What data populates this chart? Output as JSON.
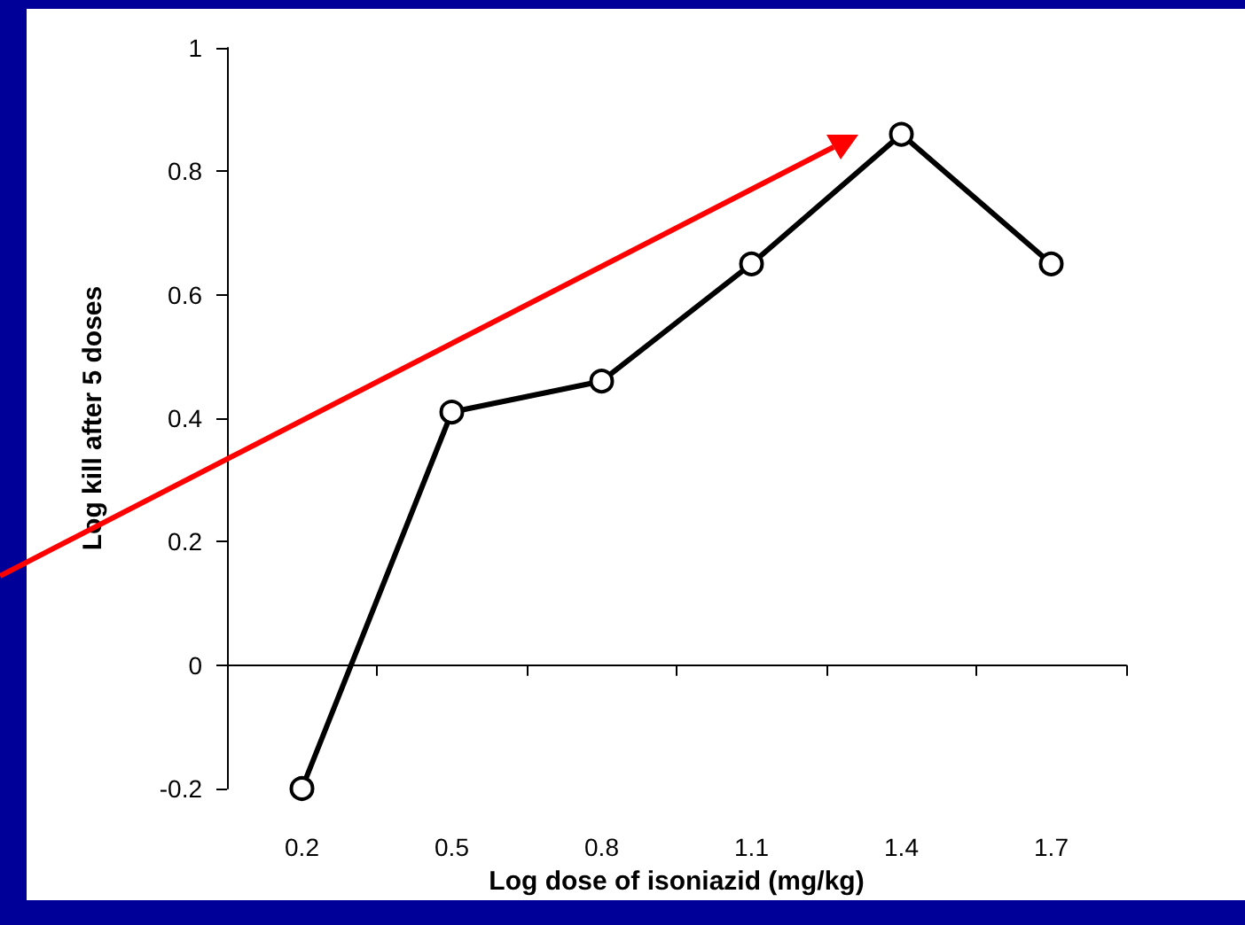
{
  "chart_data": {
    "type": "line",
    "xlabel": "Log dose of isoniazid (mg/kg)",
    "ylabel": "Log kill after 5 doses",
    "categories": [
      "0.2",
      "0.5",
      "0.8",
      "1.1",
      "1.4",
      "1.7"
    ],
    "series": [
      {
        "color": "#000000",
        "values": [
          -0.2,
          0.41,
          0.46,
          0.65,
          0.86,
          0.65
        ]
      }
    ],
    "ylim": [
      -0.2,
      1
    ],
    "yticks": [
      -0.2,
      0,
      0.2,
      0.4,
      0.6,
      0.8,
      1
    ],
    "marker": "circle"
  }
}
